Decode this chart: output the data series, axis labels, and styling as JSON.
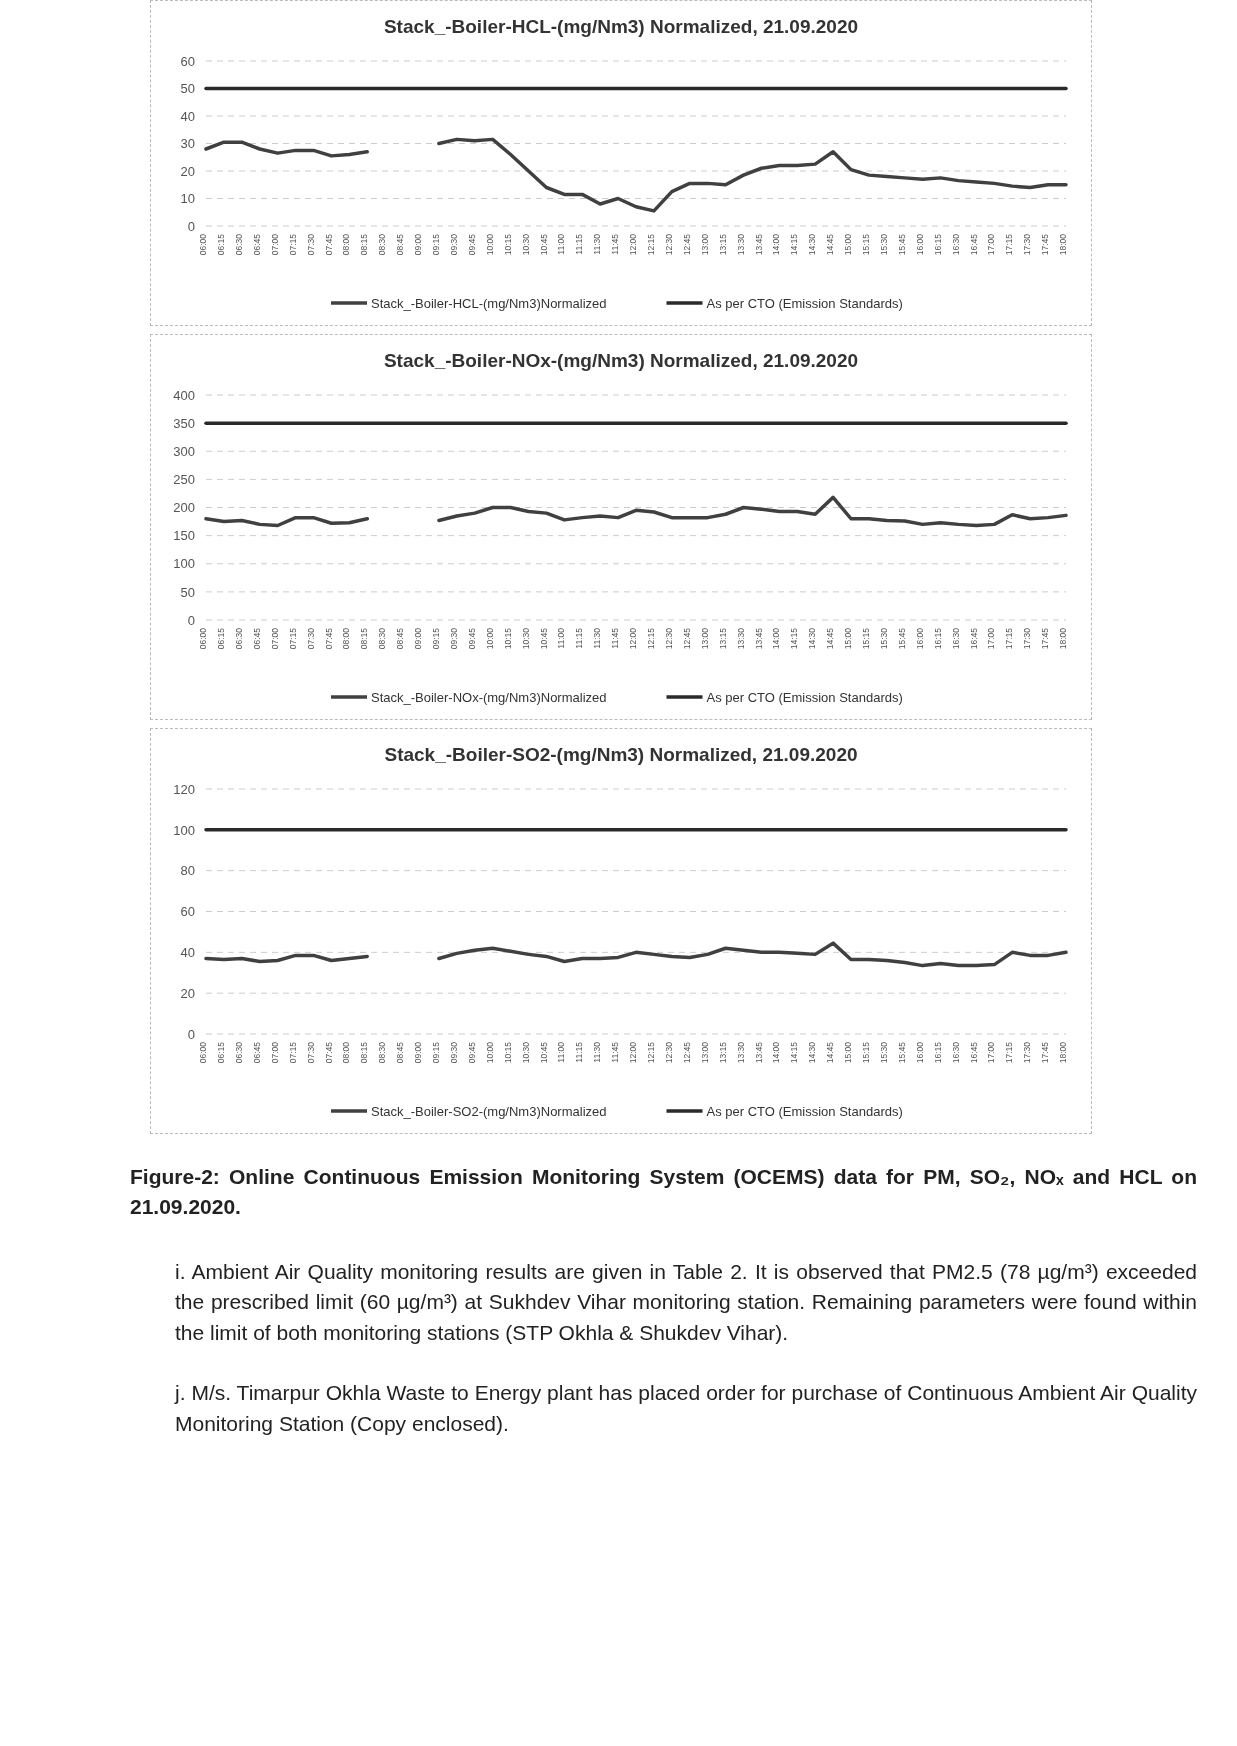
{
  "chart_data": [
    {
      "type": "line",
      "title": "Stack_-Boiler-HCL-(mg/Nm3) Normalized, 21.09.2020",
      "categories": [
        "06:00",
        "06:15",
        "06:30",
        "06:45",
        "07:00",
        "07:15",
        "07:30",
        "07:45",
        "08:00",
        "08:15",
        "08:30",
        "08:45",
        "09:00",
        "09:15",
        "09:30",
        "09:45",
        "10:00",
        "10:15",
        "10:30",
        "10:45",
        "11:00",
        "11:15",
        "11:30",
        "11:45",
        "12:00",
        "12:15",
        "12:30",
        "12:45",
        "13:00",
        "13:15",
        "13:30",
        "13:45",
        "14:00",
        "14:15",
        "14:30",
        "14:45",
        "15:00",
        "15:15",
        "15:30",
        "15:45",
        "16:00",
        "16:15",
        "16:30",
        "16:45",
        "17:00",
        "17:15",
        "17:30",
        "17:45",
        "18:00"
      ],
      "series": [
        {
          "name": "Stack_-Boiler-HCL-(mg/Nm3)Normalized",
          "color": "#404040",
          "values": [
            28,
            30.5,
            30.5,
            28,
            26.5,
            27.5,
            27.5,
            25.5,
            26,
            27,
            null,
            null,
            null,
            30,
            31.5,
            31,
            31.5,
            26,
            20,
            14,
            11.5,
            11.5,
            8,
            10,
            7,
            5.5,
            12.5,
            15.5,
            15.5,
            15,
            18.5,
            21,
            22,
            22,
            22.5,
            27,
            20.5,
            18.5,
            18,
            17.5,
            17,
            17.5,
            16.5,
            16,
            15.5,
            14.5,
            14,
            15,
            15
          ]
        },
        {
          "name": "As per CTO (Emission Standards)",
          "color": "#2a2a2a",
          "values": [
            50,
            50,
            50,
            50,
            50,
            50,
            50,
            50,
            50,
            50,
            50,
            50,
            50,
            50,
            50,
            50,
            50,
            50,
            50,
            50,
            50,
            50,
            50,
            50,
            50,
            50,
            50,
            50,
            50,
            50,
            50,
            50,
            50,
            50,
            50,
            50,
            50,
            50,
            50,
            50,
            50,
            50,
            50,
            50,
            50,
            50,
            50,
            50,
            50
          ]
        }
      ],
      "ylim": [
        0,
        60
      ],
      "yticks": [
        0,
        10,
        20,
        30,
        40,
        50,
        60
      ],
      "grid": "y",
      "legend": "bottom"
    },
    {
      "type": "line",
      "title": "Stack_-Boiler-NOx-(mg/Nm3) Normalized, 21.09.2020",
      "categories": [
        "06:00",
        "06:15",
        "06:30",
        "06:45",
        "07:00",
        "07:15",
        "07:30",
        "07:45",
        "08:00",
        "08:15",
        "08:30",
        "08:45",
        "09:00",
        "09:15",
        "09:30",
        "09:45",
        "10:00",
        "10:15",
        "10:30",
        "10:45",
        "11:00",
        "11:15",
        "11:30",
        "11:45",
        "12:00",
        "12:15",
        "12:30",
        "12:45",
        "13:00",
        "13:15",
        "13:30",
        "13:45",
        "14:00",
        "14:15",
        "14:30",
        "14:45",
        "15:00",
        "15:15",
        "15:30",
        "15:45",
        "16:00",
        "16:15",
        "16:30",
        "16:45",
        "17:00",
        "17:15",
        "17:30",
        "17:45",
        "18:00"
      ],
      "series": [
        {
          "name": "Stack_-Boiler-NOx-(mg/Nm3)Normalized",
          "color": "#404040",
          "values": [
            180,
            175,
            177,
            170,
            168,
            182,
            182,
            172,
            173,
            180,
            null,
            null,
            null,
            177,
            185,
            190,
            200,
            200,
            193,
            190,
            178,
            182,
            185,
            182,
            195,
            192,
            182,
            182,
            182,
            188,
            200,
            197,
            193,
            193,
            188,
            218,
            180,
            180,
            177,
            176,
            170,
            173,
            170,
            168,
            170,
            187,
            180,
            182,
            186
          ]
        },
        {
          "name": "As per CTO (Emission Standards)",
          "color": "#2a2a2a",
          "values": [
            350,
            350,
            350,
            350,
            350,
            350,
            350,
            350,
            350,
            350,
            350,
            350,
            350,
            350,
            350,
            350,
            350,
            350,
            350,
            350,
            350,
            350,
            350,
            350,
            350,
            350,
            350,
            350,
            350,
            350,
            350,
            350,
            350,
            350,
            350,
            350,
            350,
            350,
            350,
            350,
            350,
            350,
            350,
            350,
            350,
            350,
            350,
            350,
            350
          ]
        }
      ],
      "ylim": [
        0,
        400
      ],
      "yticks": [
        0,
        50,
        100,
        150,
        200,
        250,
        300,
        350,
        400
      ],
      "grid": "y",
      "legend": "bottom"
    },
    {
      "type": "line",
      "title": "Stack_-Boiler-SO2-(mg/Nm3) Normalized, 21.09.2020",
      "categories": [
        "06:00",
        "06:15",
        "06:30",
        "06:45",
        "07:00",
        "07:15",
        "07:30",
        "07:45",
        "08:00",
        "08:15",
        "08:30",
        "08:45",
        "09:00",
        "09:15",
        "09:30",
        "09:45",
        "10:00",
        "10:15",
        "10:30",
        "10:45",
        "11:00",
        "11:15",
        "11:30",
        "11:45",
        "12:00",
        "12:15",
        "12:30",
        "12:45",
        "13:00",
        "13:15",
        "13:30",
        "13:45",
        "14:00",
        "14:15",
        "14:30",
        "14:45",
        "15:00",
        "15:15",
        "15:30",
        "15:45",
        "16:00",
        "16:15",
        "16:30",
        "16:45",
        "17:00",
        "17:15",
        "17:30",
        "17:45",
        "18:00"
      ],
      "series": [
        {
          "name": "Stack_-Boiler-SO2-(mg/Nm3)Normalized",
          "color": "#404040",
          "values": [
            37,
            36.5,
            37,
            35.5,
            36,
            38.5,
            38.5,
            36,
            37,
            38,
            null,
            null,
            null,
            37,
            39.5,
            41,
            42,
            40.5,
            39,
            38,
            35.5,
            37,
            37,
            37.5,
            40,
            39,
            38,
            37.5,
            39,
            42,
            41,
            40,
            40,
            39.5,
            39,
            44.5,
            36.5,
            36.5,
            36,
            35,
            33.5,
            34.5,
            33.5,
            33.5,
            34,
            40,
            38.5,
            38.5,
            40
          ]
        },
        {
          "name": "As per CTO (Emission Standards)",
          "color": "#2a2a2a",
          "values": [
            100,
            100,
            100,
            100,
            100,
            100,
            100,
            100,
            100,
            100,
            100,
            100,
            100,
            100,
            100,
            100,
            100,
            100,
            100,
            100,
            100,
            100,
            100,
            100,
            100,
            100,
            100,
            100,
            100,
            100,
            100,
            100,
            100,
            100,
            100,
            100,
            100,
            100,
            100,
            100,
            100,
            100,
            100,
            100,
            100,
            100,
            100,
            100,
            100
          ]
        }
      ],
      "ylim": [
        0,
        120
      ],
      "yticks": [
        0,
        20,
        40,
        60,
        80,
        100,
        120
      ],
      "grid": "y",
      "legend": "bottom",
      "annotations": [
        "Figure-2: Online Continuous Emission Monitoring System (OCEMS) data for PM, SO₂, NOₓ and HCL on 21.09.2020.",
        "i. Ambient Air Quality monitoring results are given in Table 2. It is observed that PM2.5 (78 µg/m³) exceeded the prescribed limit (60 µg/m³) at Sukhdev Vihar monitoring station. Remaining parameters were found within the limit of both monitoring stations (STP Okhla & Shukdev Vihar).",
        "j. M/s. Timarpur Okhla Waste to Energy plant has placed order for purchase of Continuous Ambient Air Quality Monitoring Station (Copy enclosed)."
      ]
    }
  ]
}
